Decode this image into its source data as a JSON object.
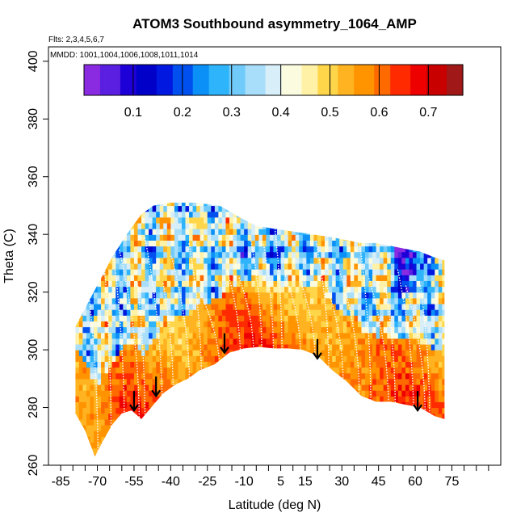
{
  "chart_data": {
    "type": "heatmap",
    "title": "ATOM3 Southbound asymmetry_1064_AMP",
    "flights_note": "Flts: 2,3,4,5,6,7",
    "dates_note": "MMDD: 1001,1004,1006,1008,1011,1014",
    "xlabel": "Latitude (deg N)",
    "ylabel": "Theta (C)",
    "xlim": [
      -90,
      95
    ],
    "ylim": [
      260,
      405
    ],
    "x_ticks": [
      -85,
      -70,
      -55,
      -40,
      -25,
      -10,
      5,
      15,
      30,
      45,
      60,
      75
    ],
    "x_tick_labels": [
      "-85",
      "-70",
      "-55",
      "-40",
      "-25",
      "-10",
      "5",
      "15",
      "30",
      "45",
      "60",
      "75"
    ],
    "x_minor_ticks": [
      -80,
      -75,
      -65,
      -60,
      -50,
      -45,
      -35,
      -30,
      -20,
      -15,
      -5,
      0,
      10,
      20,
      25,
      35,
      40,
      50,
      55,
      65,
      70,
      80,
      85,
      90
    ],
    "y_ticks": [
      260,
      280,
      300,
      320,
      340,
      360,
      380,
      400
    ],
    "y_tick_labels": [
      "260",
      "280",
      "300",
      "320",
      "340",
      "360",
      "380",
      "400"
    ],
    "colorbar": {
      "range": [
        0.0,
        0.77
      ],
      "ticks": [
        0.1,
        0.2,
        0.3,
        0.4,
        0.5,
        0.6,
        0.7
      ],
      "tick_labels": [
        "0.1",
        "0.2",
        "0.3",
        "0.4",
        "0.5",
        "0.6",
        "0.7"
      ],
      "colors": [
        "#8a2be2",
        "#5a1fe0",
        "#1d00d8",
        "#0000c8",
        "#0018e0",
        "#0050f0",
        "#0a90f6",
        "#2eb4fb",
        "#70cbfb",
        "#a8def9",
        "#d8eef9",
        "#fbfbe0",
        "#fff1a6",
        "#ffd64a",
        "#ffb320",
        "#ff9400",
        "#ff6a00",
        "#ff2a00",
        "#ee0000",
        "#c80000",
        "#a01818"
      ]
    },
    "tropopause_arrows": [
      {
        "lat": -55,
        "theta": 279
      },
      {
        "lat": -46,
        "theta": 284
      },
      {
        "lat": -18,
        "theta": 299
      },
      {
        "lat": 20,
        "theta": 297
      },
      {
        "lat": 61,
        "theta": 279
      }
    ],
    "data_domain": {
      "lat_range": [
        -79,
        72
      ],
      "theta_range": [
        262,
        352
      ],
      "lower_boundary": [
        [
          -79,
          278
        ],
        [
          -75,
          272
        ],
        [
          -71,
          263
        ],
        [
          -68,
          268
        ],
        [
          -64,
          274
        ],
        [
          -60,
          278
        ],
        [
          -56,
          279
        ],
        [
          -52,
          276
        ],
        [
          -48,
          280
        ],
        [
          -43,
          285
        ],
        [
          -38,
          288
        ],
        [
          -33,
          290
        ],
        [
          -28,
          293
        ],
        [
          -22,
          295
        ],
        [
          -16,
          299
        ],
        [
          -10,
          300.5
        ],
        [
          -4,
          301
        ],
        [
          2,
          300.5
        ],
        [
          8,
          300.5
        ],
        [
          14,
          300
        ],
        [
          20,
          298
        ],
        [
          26,
          293
        ],
        [
          32,
          289
        ],
        [
          38,
          284
        ],
        [
          44,
          282
        ],
        [
          50,
          282
        ],
        [
          56,
          281
        ],
        [
          62,
          280
        ],
        [
          68,
          277
        ],
        [
          72,
          276
        ]
      ],
      "upper_boundary": [
        [
          -79,
          308
        ],
        [
          -74,
          316
        ],
        [
          -69,
          324
        ],
        [
          -64,
          332
        ],
        [
          -58,
          340
        ],
        [
          -52,
          347
        ],
        [
          -47,
          350
        ],
        [
          -40,
          351
        ],
        [
          -30,
          351
        ],
        [
          -20,
          350
        ],
        [
          -12,
          346
        ],
        [
          -5,
          343
        ],
        [
          2,
          342
        ],
        [
          10,
          341
        ],
        [
          18,
          340
        ],
        [
          26,
          339
        ],
        [
          32,
          338
        ],
        [
          38,
          337
        ],
        [
          44,
          337
        ],
        [
          50,
          336
        ],
        [
          56,
          335
        ],
        [
          62,
          334
        ],
        [
          68,
          332
        ],
        [
          72,
          331
        ]
      ]
    }
  }
}
